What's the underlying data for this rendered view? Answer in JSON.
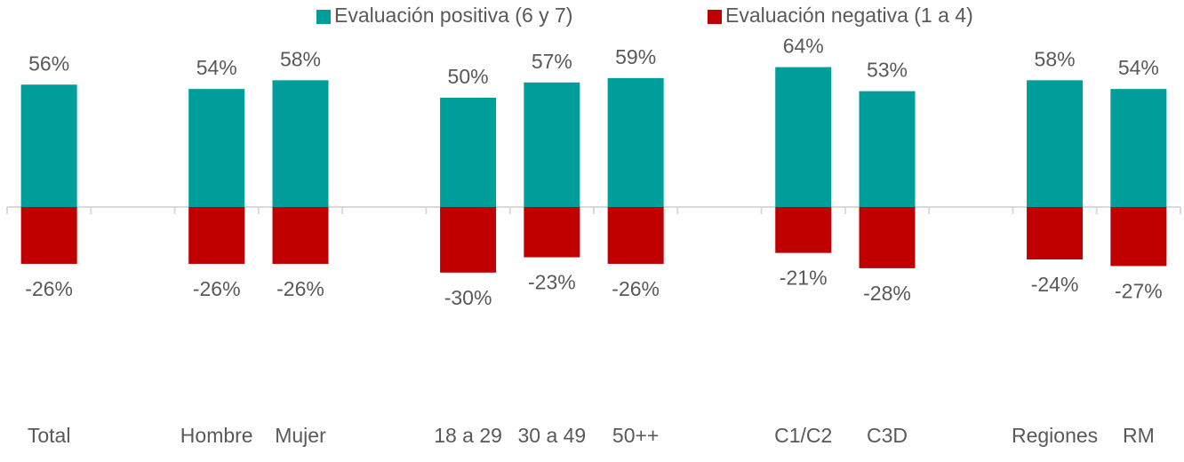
{
  "chart_data": {
    "type": "bar",
    "categories": [
      "Total",
      null,
      "Hombre",
      "Mujer",
      null,
      "18 a 29",
      "30 a 49",
      "50++",
      null,
      "C1/C2",
      "C3D",
      null,
      "Regiones",
      "RM"
    ],
    "series": [
      {
        "name": "Evaluación positiva (6 y 7)",
        "color": "#009e9a",
        "values": [
          56,
          null,
          54,
          58,
          null,
          50,
          57,
          59,
          null,
          64,
          53,
          null,
          58,
          54
        ],
        "value_labels": [
          "56%",
          null,
          "54%",
          "58%",
          null,
          "50%",
          "57%",
          "59%",
          null,
          "64%",
          "53%",
          null,
          "58%",
          "54%"
        ]
      },
      {
        "name": "Evaluación negativa (1 a 4)",
        "color": "#c00000",
        "values": [
          -26,
          null,
          -26,
          -26,
          null,
          -30,
          -23,
          -26,
          null,
          -21,
          -28,
          null,
          -24,
          -27
        ],
        "value_labels": [
          "-26%",
          null,
          "-26%",
          "-26%",
          null,
          "-30%",
          "-23%",
          "-26%",
          null,
          "-21%",
          "-28%",
          null,
          "-24%",
          "-27%"
        ]
      }
    ],
    "legend": "top"
  }
}
